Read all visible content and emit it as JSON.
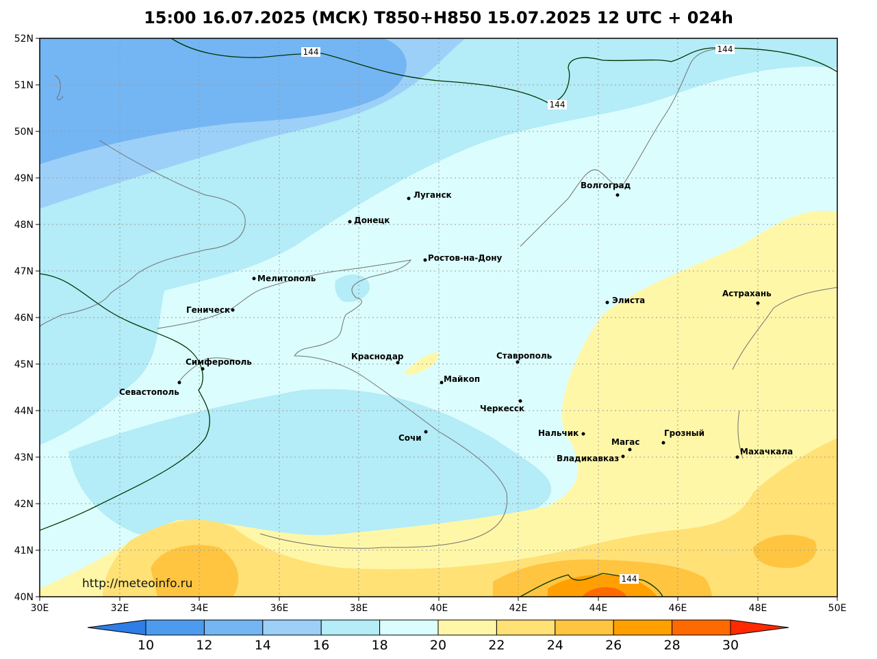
{
  "title": "15:00 16.07.2025 (МСК) T850+H850 15.07.2025 12 UTC + 024h",
  "watermark": "http://meteoinfo.ru",
  "axes": {
    "lat_labels": [
      "52N",
      "51N",
      "50N",
      "49N",
      "48N",
      "47N",
      "46N",
      "45N",
      "44N",
      "43N",
      "42N",
      "41N",
      "40N"
    ],
    "lon_labels": [
      "30E",
      "32E",
      "34E",
      "36E",
      "38E",
      "40E",
      "42E",
      "44E",
      "46E",
      "48E",
      "50E"
    ]
  },
  "contours": {
    "label": "144",
    "color": "#003300"
  },
  "colorbar": {
    "ticks": [
      "10",
      "12",
      "14",
      "16",
      "18",
      "20",
      "22",
      "24",
      "26",
      "28",
      "30"
    ],
    "colors": [
      "#2f7de6",
      "#4d9bef",
      "#74b5f3",
      "#9dd0f8",
      "#b4ecf7",
      "#dcfdfd",
      "#fff7a8",
      "#ffe176",
      "#ffc540",
      "#ffa000",
      "#ff6a00",
      "#ff2a00"
    ]
  },
  "cities": [
    {
      "name": "Волгоград"
    },
    {
      "name": "Луганск"
    },
    {
      "name": "Донецк"
    },
    {
      "name": "Ростов-на-Дону"
    },
    {
      "name": "Мелитополь"
    },
    {
      "name": "Геническ"
    },
    {
      "name": "Элиста"
    },
    {
      "name": "Астрахань"
    },
    {
      "name": "Симферополь"
    },
    {
      "name": "Краснодар"
    },
    {
      "name": "Ставрополь"
    },
    {
      "name": "Майкоп"
    },
    {
      "name": "Севастополь"
    },
    {
      "name": "Черкесск"
    },
    {
      "name": "Нальчик"
    },
    {
      "name": "Грозный"
    },
    {
      "name": "Сочи"
    },
    {
      "name": "Магас"
    },
    {
      "name": "Махачкала"
    },
    {
      "name": "Владикавказ"
    }
  ]
}
